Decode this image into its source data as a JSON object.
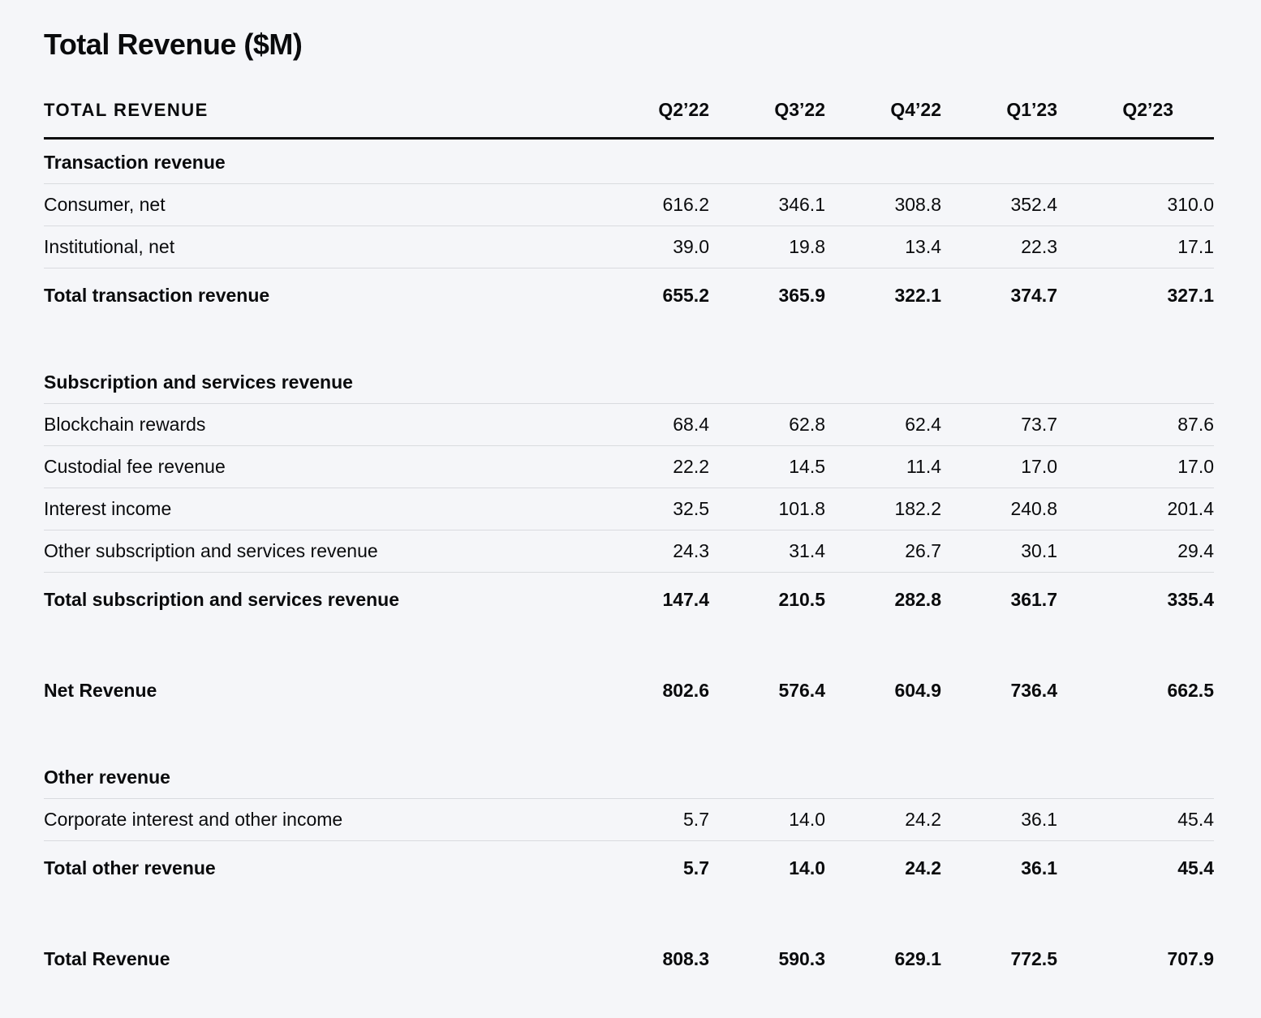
{
  "page": {
    "title": "Total Revenue ($M)",
    "background_color": "#f5f6f9",
    "text_color": "#0a0b0d",
    "rule_color": "#d9dbdf"
  },
  "table": {
    "header": {
      "label": "TOTAL REVENUE",
      "columns": [
        "Q2’22",
        "Q3’22",
        "Q4’22",
        "Q1’23",
        "Q2’23"
      ]
    },
    "rows": [
      {
        "type": "section",
        "label": "Transaction revenue"
      },
      {
        "type": "data",
        "label": "Consumer, net",
        "values": [
          "616.2",
          "346.1",
          "308.8",
          "352.4",
          "310.0"
        ]
      },
      {
        "type": "data",
        "label": "Institutional, net",
        "values": [
          "39.0",
          "19.8",
          "13.4",
          "22.3",
          "17.1"
        ]
      },
      {
        "type": "total",
        "label": "Total transaction revenue",
        "values": [
          "655.2",
          "365.9",
          "322.1",
          "374.7",
          "327.1"
        ]
      },
      {
        "type": "spacer"
      },
      {
        "type": "section",
        "label": "Subscription and services revenue"
      },
      {
        "type": "data",
        "label": "Blockchain rewards",
        "values": [
          "68.4",
          "62.8",
          "62.4",
          "73.7",
          "87.6"
        ]
      },
      {
        "type": "data",
        "label": "Custodial fee revenue",
        "values": [
          "22.2",
          "14.5",
          "11.4",
          "17.0",
          "17.0"
        ]
      },
      {
        "type": "data",
        "label": "Interest income",
        "values": [
          "32.5",
          "101.8",
          "182.2",
          "240.8",
          "201.4"
        ]
      },
      {
        "type": "data",
        "label": "Other subscription and services revenue",
        "values": [
          "24.3",
          "31.4",
          "26.7",
          "30.1",
          "29.4"
        ]
      },
      {
        "type": "total",
        "label": "Total subscription and services revenue",
        "values": [
          "147.4",
          "210.5",
          "282.8",
          "361.7",
          "335.4"
        ]
      },
      {
        "type": "spacer"
      },
      {
        "type": "total",
        "label": "Net Revenue",
        "values": [
          "802.6",
          "576.4",
          "604.9",
          "736.4",
          "662.5"
        ]
      },
      {
        "type": "spacer"
      },
      {
        "type": "section",
        "label": "Other revenue"
      },
      {
        "type": "data",
        "label": "Corporate interest and other income",
        "values": [
          "5.7",
          "14.0",
          "24.2",
          "36.1",
          "45.4"
        ]
      },
      {
        "type": "total",
        "label": "Total other revenue",
        "values": [
          "5.7",
          "14.0",
          "24.2",
          "36.1",
          "45.4"
        ]
      },
      {
        "type": "spacer"
      },
      {
        "type": "total",
        "label": "Total Revenue",
        "values": [
          "808.3",
          "590.3",
          "629.1",
          "772.5",
          "707.9"
        ]
      }
    ]
  }
}
